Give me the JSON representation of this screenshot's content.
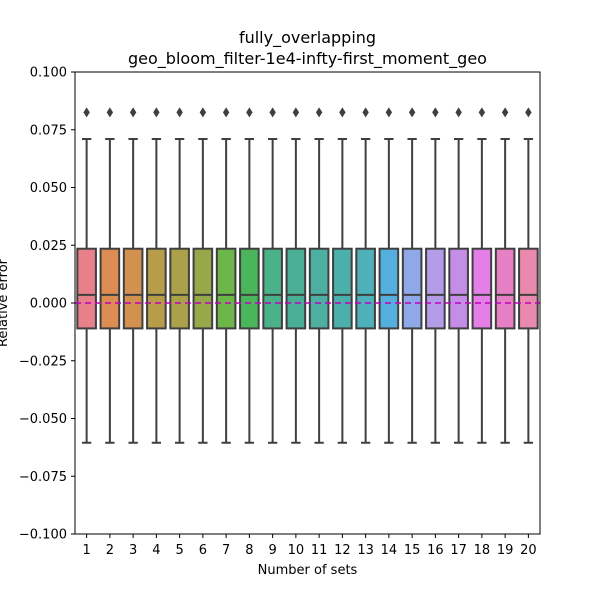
{
  "chart_data": {
    "type": "box",
    "title_line1": "fully_overlapping",
    "title_line2": "geo_bloom_filter-1e4-infty-first_moment_geo",
    "xlabel": "Number of sets",
    "ylabel": "Relative error",
    "ylim": [
      -0.1,
      0.1
    ],
    "yticks": [
      -0.1,
      -0.075,
      -0.05,
      -0.025,
      0.0,
      0.025,
      0.05,
      0.075,
      0.1
    ],
    "ytick_labels": [
      "−0.100",
      "−0.075",
      "−0.050",
      "−0.025",
      "0.000",
      "0.025",
      "0.050",
      "0.075",
      "0.100"
    ],
    "categories": [
      "1",
      "2",
      "3",
      "4",
      "5",
      "6",
      "7",
      "8",
      "9",
      "10",
      "11",
      "12",
      "13",
      "14",
      "15",
      "16",
      "17",
      "18",
      "19",
      "20"
    ],
    "box_stats": {
      "whisker_low": -0.0605,
      "q1": -0.011,
      "median": 0.0035,
      "q3": 0.0235,
      "whisker_high": 0.071,
      "outlier": 0.0825
    },
    "reference_line": {
      "y": 0.0,
      "color": "#bf00bf",
      "style": "dashed"
    },
    "colors": [
      "#e8808a",
      "#dd8c53",
      "#d39150",
      "#b79c4a",
      "#aaa14a",
      "#97a84a",
      "#6db64a",
      "#4ab55a",
      "#4bb18a",
      "#4baf96",
      "#4caf9f",
      "#4cb0aa",
      "#4eb1b9",
      "#54aede",
      "#8ea8e8",
      "#b49de8",
      "#c48de8",
      "#e37fe6",
      "#e67fc4",
      "#e889ad"
    ],
    "grid": false
  }
}
